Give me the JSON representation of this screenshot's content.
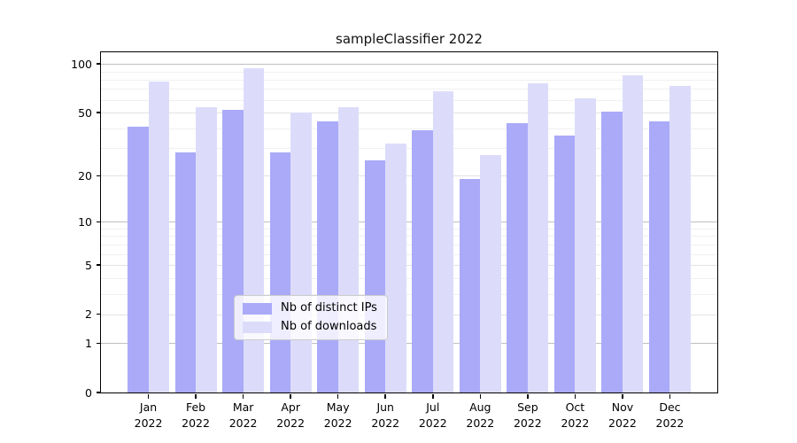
{
  "chart_data": {
    "type": "bar",
    "title": "sampleClassifier 2022",
    "categories": [
      "Jan 2022",
      "Feb 2022",
      "Mar 2022",
      "Apr 2022",
      "May 2022",
      "Jun 2022",
      "Jul 2022",
      "Aug 2022",
      "Sep 2022",
      "Oct 2022",
      "Nov 2022",
      "Dec 2022"
    ],
    "series": [
      {
        "name": "Nb of distinct IPs",
        "color": "#aaaaf9",
        "values": [
          41,
          28,
          52,
          28,
          44,
          25,
          39,
          19,
          43,
          36,
          51,
          44
        ]
      },
      {
        "name": "Nb of downloads",
        "color": "#dcdcfa",
        "values": [
          78,
          54,
          94,
          50,
          54,
          32,
          68,
          27,
          76,
          61,
          85,
          73
        ]
      }
    ],
    "xlabel": "",
    "ylabel": "",
    "yscale": "log1p",
    "ylim": [
      0,
      118
    ],
    "yticks": [
      100,
      50,
      20,
      10,
      5,
      2,
      1,
      0
    ],
    "decade_ticks": [
      100,
      10,
      1
    ],
    "minor_gridlines": [
      3,
      4,
      6,
      7,
      8,
      9,
      30,
      40,
      60,
      70,
      80,
      90
    ],
    "grid": true,
    "legend_position": "lower center"
  }
}
